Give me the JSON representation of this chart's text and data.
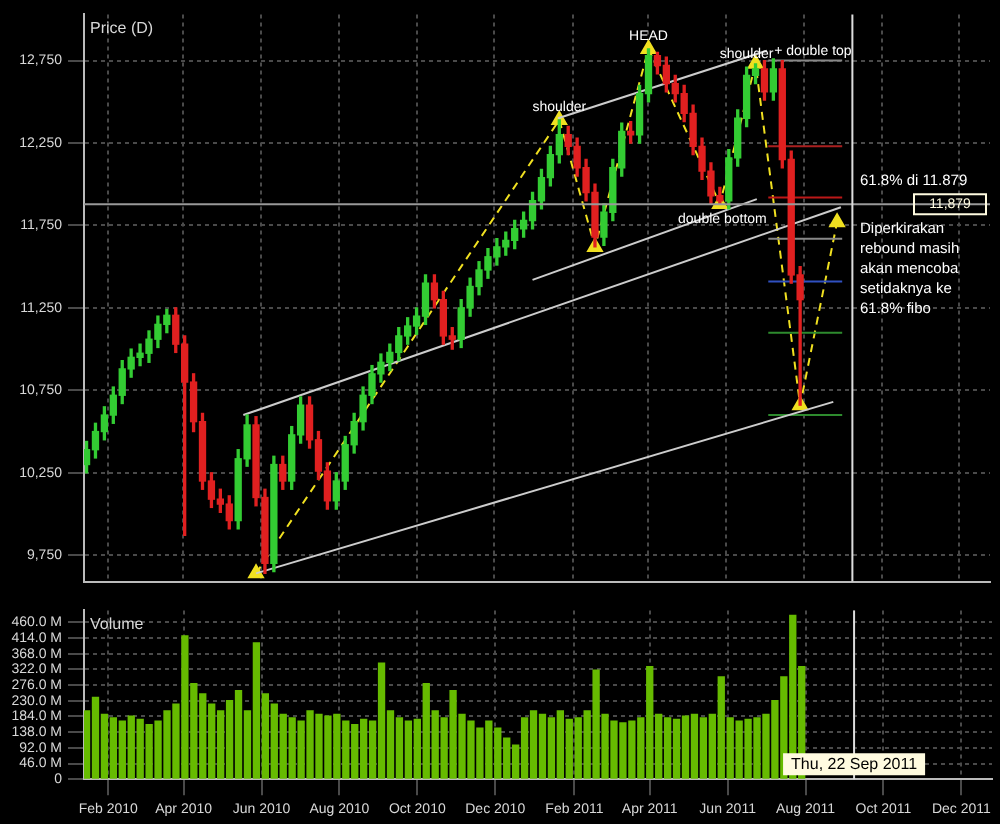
{
  "chart_data": [
    {
      "type": "candlestick",
      "title": "Price (D)",
      "x": [
        "2010-01-29",
        "2010-02-05",
        "2010-02-12",
        "2010-02-19",
        "2010-02-26",
        "2010-03-05",
        "2010-03-12",
        "2010-03-19",
        "2010-03-26",
        "2010-04-02",
        "2010-04-09",
        "2010-04-16",
        "2010-04-23",
        "2010-04-30",
        "2010-05-07",
        "2010-05-14",
        "2010-05-21",
        "2010-05-28",
        "2010-06-04",
        "2010-06-11",
        "2010-06-18",
        "2010-06-25",
        "2010-07-02",
        "2010-07-09",
        "2010-07-16",
        "2010-07-23",
        "2010-07-30",
        "2010-08-06",
        "2010-08-13",
        "2010-08-20",
        "2010-08-27",
        "2010-09-03",
        "2010-09-10",
        "2010-09-17",
        "2010-09-24",
        "2010-10-01",
        "2010-10-08",
        "2010-10-15",
        "2010-10-22",
        "2010-10-29",
        "2010-11-05",
        "2010-11-12",
        "2010-11-19",
        "2010-11-26",
        "2010-12-03",
        "2010-12-10",
        "2010-12-17",
        "2010-12-24",
        "2010-12-31",
        "2011-01-07",
        "2011-01-14",
        "2011-01-21",
        "2011-01-28",
        "2011-02-04",
        "2011-02-11",
        "2011-02-18",
        "2011-02-25",
        "2011-03-04",
        "2011-03-11",
        "2011-03-18",
        "2011-03-25",
        "2011-04-01",
        "2011-04-08",
        "2011-04-15",
        "2011-04-22",
        "2011-04-29",
        "2011-05-06",
        "2011-05-13",
        "2011-05-20",
        "2011-05-27",
        "2011-06-03",
        "2011-06-10",
        "2011-06-17",
        "2011-06-24",
        "2011-07-01",
        "2011-07-08",
        "2011-07-15",
        "2011-07-22",
        "2011-07-29",
        "2011-08-05",
        "2011-08-12"
      ],
      "ohlc": [
        [
          10300,
          10440,
          10250,
          10390
        ],
        [
          10390,
          10550,
          10340,
          10500
        ],
        [
          10500,
          10650,
          10450,
          10600
        ],
        [
          10600,
          10770,
          10550,
          10720
        ],
        [
          10720,
          10930,
          10670,
          10880
        ],
        [
          10880,
          11000,
          10830,
          10950
        ],
        [
          10950,
          11030,
          10900,
          10975
        ],
        [
          10975,
          11110,
          10920,
          11060
        ],
        [
          11060,
          11200,
          11010,
          11150
        ],
        [
          11150,
          11240,
          11100,
          11205
        ],
        [
          11205,
          11250,
          10980,
          11030
        ],
        [
          11030,
          11080,
          9870,
          10800
        ],
        [
          10800,
          10850,
          10500,
          10560
        ],
        [
          10560,
          10610,
          10150,
          10200
        ],
        [
          10200,
          10250,
          10040,
          10090
        ],
        [
          10090,
          10150,
          10010,
          10060
        ],
        [
          10060,
          10110,
          9910,
          9960
        ],
        [
          9960,
          10390,
          9910,
          10335
        ],
        [
          10335,
          10600,
          10290,
          10540
        ],
        [
          10540,
          10590,
          10050,
          10100
        ],
        [
          10100,
          10150,
          9640,
          9700
        ],
        [
          9700,
          10350,
          9650,
          10300
        ],
        [
          10300,
          10350,
          10150,
          10200
        ],
        [
          10200,
          10530,
          10150,
          10480
        ],
        [
          10480,
          10710,
          10430,
          10660
        ],
        [
          10660,
          10710,
          10400,
          10450
        ],
        [
          10450,
          10500,
          10210,
          10260
        ],
        [
          10260,
          10310,
          10030,
          10080
        ],
        [
          10080,
          10250,
          10030,
          10200
        ],
        [
          10200,
          10470,
          10150,
          10420
        ],
        [
          10420,
          10610,
          10370,
          10560
        ],
        [
          10560,
          10770,
          10510,
          10720
        ],
        [
          10720,
          10900,
          10670,
          10850
        ],
        [
          10850,
          10970,
          10800,
          10920
        ],
        [
          10920,
          11030,
          10870,
          10980
        ],
        [
          10980,
          11130,
          10930,
          11080
        ],
        [
          11080,
          11190,
          11030,
          11140
        ],
        [
          11140,
          11250,
          11090,
          11200
        ],
        [
          11200,
          11450,
          11150,
          11400
        ],
        [
          11400,
          11450,
          11250,
          11300
        ],
        [
          11300,
          11350,
          11030,
          11080
        ],
        [
          11080,
          11130,
          11000,
          11060
        ],
        [
          11060,
          11300,
          11010,
          11250
        ],
        [
          11250,
          11430,
          11200,
          11380
        ],
        [
          11380,
          11530,
          11330,
          11480
        ],
        [
          11480,
          11610,
          11430,
          11560
        ],
        [
          11560,
          11670,
          11510,
          11620
        ],
        [
          11620,
          11710,
          11570,
          11660
        ],
        [
          11660,
          11780,
          11610,
          11730
        ],
        [
          11730,
          11830,
          11680,
          11780
        ],
        [
          11780,
          11950,
          11730,
          11900
        ],
        [
          11900,
          12090,
          11850,
          12040
        ],
        [
          12040,
          12230,
          11990,
          12180
        ],
        [
          12180,
          12390,
          12130,
          12300
        ],
        [
          12300,
          12350,
          12180,
          12230
        ],
        [
          12230,
          12280,
          12050,
          12100
        ],
        [
          12100,
          12150,
          11900,
          11950
        ],
        [
          11950,
          12000,
          11620,
          11680
        ],
        [
          11680,
          11880,
          11630,
          11830
        ],
        [
          11830,
          12150,
          11780,
          12100
        ],
        [
          12100,
          12370,
          12050,
          12320
        ],
        [
          12320,
          12380,
          12250,
          12300
        ],
        [
          12300,
          12600,
          12250,
          12550
        ],
        [
          12550,
          12820,
          12500,
          12780
        ],
        [
          12780,
          12800,
          12670,
          12720
        ],
        [
          12720,
          12770,
          12560,
          12610
        ],
        [
          12610,
          12660,
          12500,
          12550
        ],
        [
          12550,
          12600,
          12380,
          12430
        ],
        [
          12430,
          12480,
          12180,
          12230
        ],
        [
          12230,
          12280,
          12030,
          12080
        ],
        [
          12080,
          12130,
          11880,
          11930
        ],
        [
          11930,
          11980,
          11880,
          11900
        ],
        [
          11900,
          12210,
          11850,
          12160
        ],
        [
          12160,
          12450,
          12110,
          12400
        ],
        [
          12400,
          12710,
          12350,
          12660
        ],
        [
          12660,
          12730,
          12610,
          12700
        ],
        [
          12700,
          12750,
          12510,
          12560
        ],
        [
          12560,
          12760,
          12510,
          12700
        ],
        [
          12700,
          12750,
          12100,
          12150
        ],
        [
          12150,
          12200,
          11400,
          11450
        ],
        [
          11450,
          11500,
          10660,
          11300
        ]
      ],
      "colors": [
        "#33cc33",
        "#33cc33",
        "#33cc33",
        "#33cc33",
        "#33cc33",
        "#33cc33",
        "#33cc33",
        "#33cc33",
        "#33cc33",
        "#33cc33",
        "#e02020",
        "#e02020",
        "#e02020",
        "#e02020",
        "#e02020",
        "#e02020",
        "#e02020",
        "#33cc33",
        "#33cc33",
        "#e02020",
        "#e02020",
        "#33cc33",
        "#e02020",
        "#33cc33",
        "#33cc33",
        "#e02020",
        "#e02020",
        "#e02020",
        "#33cc33",
        "#33cc33",
        "#33cc33",
        "#33cc33",
        "#33cc33",
        "#33cc33",
        "#33cc33",
        "#33cc33",
        "#33cc33",
        "#33cc33",
        "#33cc33",
        "#e02020",
        "#e02020",
        "#e02020",
        "#33cc33",
        "#33cc33",
        "#33cc33",
        "#33cc33",
        "#33cc33",
        "#33cc33",
        "#33cc33",
        "#33cc33",
        "#33cc33",
        "#33cc33",
        "#33cc33",
        "#33cc33",
        "#e02020",
        "#e02020",
        "#e02020",
        "#e02020",
        "#33cc33",
        "#33cc33",
        "#33cc33",
        "#e02020",
        "#33cc33",
        "#33cc33",
        "#e02020",
        "#e02020",
        "#e02020",
        "#e02020",
        "#e02020",
        "#e02020",
        "#e02020",
        "#e02020",
        "#33cc33",
        "#33cc33",
        "#33cc33",
        "#33cc33",
        "#e02020",
        "#33cc33",
        "#e02020",
        "#e02020",
        "#e02020"
      ],
      "series": [
        {
          "type": "line",
          "color": "#cccccc",
          "x": [
            "2010-06-11",
            "2011-09-07"
          ],
          "values": [
            9640,
            10680
          ]
        },
        {
          "type": "line",
          "color": "#cccccc",
          "x": [
            "2010-06-01",
            "2011-09-13"
          ],
          "values": [
            10600,
            11860
          ]
        },
        {
          "type": "line",
          "color": "#cccccc",
          "x": [
            "2011-01-14",
            "2011-07-09"
          ],
          "values": [
            11420,
            11910
          ]
        },
        {
          "type": "line",
          "color": "#cccccc",
          "x": [
            "2011-02-03",
            "2011-07-17"
          ],
          "values": [
            12400,
            12810
          ]
        },
        {
          "type": "line",
          "color": "#888888",
          "x": [
            "2011-07-18",
            "2011-09-14"
          ],
          "values": [
            12750,
            12750
          ]
        },
        {
          "type": "line",
          "color": "#aa2020",
          "x": [
            "2011-07-18",
            "2011-09-14"
          ],
          "values": [
            12230,
            12230
          ]
        },
        {
          "type": "line",
          "color": "#bb1818",
          "x": [
            "2011-07-18",
            "2011-09-14"
          ],
          "values": [
            11920,
            11920
          ]
        },
        {
          "type": "line",
          "color": "#888888",
          "x": [
            "2011-07-18",
            "2011-09-14"
          ],
          "values": [
            11670,
            11670
          ]
        },
        {
          "type": "line",
          "color": "#3050c0",
          "x": [
            "2011-07-18",
            "2011-09-14"
          ],
          "values": [
            11410,
            11410
          ]
        },
        {
          "type": "line",
          "color": "#2e8b2e",
          "x": [
            "2011-07-18",
            "2011-09-14"
          ],
          "values": [
            11100,
            11100
          ]
        },
        {
          "type": "line",
          "color": "#2e8b2e",
          "x": [
            "2011-07-18",
            "2011-09-14"
          ],
          "values": [
            10600,
            10600
          ]
        },
        {
          "type": "line",
          "color": "#f0e020",
          "line_style": "dashed",
          "marker": "triangle",
          "x": [
            "2010-06-11",
            "2011-02-04",
            "2011-03-04",
            "2011-04-15",
            "2011-06-10",
            "2011-07-08",
            "2011-08-12",
            "2011-09-10"
          ],
          "values": [
            9640,
            12390,
            11620,
            12820,
            11880,
            12730,
            10660,
            11770
          ]
        }
      ],
      "xlim": [
        "2010-01-27",
        "2012-01-08"
      ],
      "xticks": [
        {
          "value": "2010-02-15",
          "label": null
        },
        {
          "value": "2010-04-15",
          "label": null
        },
        {
          "value": "2010-06-15",
          "label": null
        },
        {
          "value": "2010-08-15",
          "label": null
        },
        {
          "value": "2010-10-15",
          "label": null
        },
        {
          "value": "2010-12-15",
          "label": null
        },
        {
          "value": "2011-02-15",
          "label": null
        },
        {
          "value": "2011-04-15",
          "label": null
        },
        {
          "value": "2011-06-15",
          "label": null
        },
        {
          "value": "2011-08-15",
          "label": null
        },
        {
          "value": "2011-10-15",
          "label": null
        },
        {
          "value": "2011-12-15",
          "label": null
        }
      ],
      "ylim": [
        9590,
        13030
      ],
      "yticks": [
        {
          "value": 9750,
          "label": "9,750"
        },
        {
          "value": 10250,
          "label": "10,250"
        },
        {
          "value": 10750,
          "label": "10,750"
        },
        {
          "value": 11250,
          "label": "11,250"
        },
        {
          "value": 11750,
          "label": "11,750"
        },
        {
          "value": 12250,
          "label": "12,250"
        },
        {
          "value": 12750,
          "label": "12,750"
        }
      ],
      "tick_labels": "y",
      "grid": true,
      "ref_lines": [
        {
          "axis": "y",
          "value": 11879,
          "label": "11,879",
          "color": "#999999"
        },
        {
          "axis": "x",
          "value": "2011-09-22",
          "color": "#dddddd"
        }
      ],
      "annotations": [
        {
          "text": "shoulder",
          "x": "2011-02-04",
          "y": 12470
        },
        {
          "text": "HEAD",
          "x": "2011-04-15",
          "y": 12900
        },
        {
          "text": "shoulder",
          "x": "2011-07-01",
          "y": 12790
        },
        {
          "text": "+ double top",
          "x": "2011-08-22",
          "y": 12810
        },
        {
          "text": "double bottom",
          "x": "2011-06-12",
          "y": 11790
        },
        "61.8% di 11.879",
        "Diperkirakan rebound masih akan mencoba setidaknya ke 61.8% fibo"
      ]
    },
    {
      "type": "bar",
      "title": "Volume",
      "x": [
        "2010-01-29",
        "2010-02-05",
        "2010-02-12",
        "2010-02-19",
        "2010-02-26",
        "2010-03-05",
        "2010-03-12",
        "2010-03-19",
        "2010-03-26",
        "2010-04-02",
        "2010-04-09",
        "2010-04-16",
        "2010-04-23",
        "2010-04-30",
        "2010-05-07",
        "2010-05-14",
        "2010-05-21",
        "2010-05-28",
        "2010-06-04",
        "2010-06-11",
        "2010-06-18",
        "2010-06-25",
        "2010-07-02",
        "2010-07-09",
        "2010-07-16",
        "2010-07-23",
        "2010-07-30",
        "2010-08-06",
        "2010-08-13",
        "2010-08-20",
        "2010-08-27",
        "2010-09-03",
        "2010-09-10",
        "2010-09-17",
        "2010-09-24",
        "2010-10-01",
        "2010-10-08",
        "2010-10-15",
        "2010-10-22",
        "2010-10-29",
        "2010-11-05",
        "2010-11-12",
        "2010-11-19",
        "2010-11-26",
        "2010-12-03",
        "2010-12-10",
        "2010-12-17",
        "2010-12-24",
        "2010-12-31",
        "2011-01-07",
        "2011-01-14",
        "2011-01-21",
        "2011-01-28",
        "2011-02-04",
        "2011-02-11",
        "2011-02-18",
        "2011-02-25",
        "2011-03-04",
        "2011-03-11",
        "2011-03-18",
        "2011-03-25",
        "2011-04-01",
        "2011-04-08",
        "2011-04-15",
        "2011-04-22",
        "2011-04-29",
        "2011-05-06",
        "2011-05-13",
        "2011-05-20",
        "2011-05-27",
        "2011-06-03",
        "2011-06-10",
        "2011-06-17",
        "2011-06-24",
        "2011-07-01",
        "2011-07-08",
        "2011-07-15",
        "2011-07-22",
        "2011-07-29",
        "2011-08-05",
        "2011-08-12"
      ],
      "values": [
        200,
        240,
        190,
        180,
        170,
        185,
        175,
        160,
        170,
        200,
        220,
        420,
        280,
        250,
        220,
        200,
        230,
        260,
        200,
        400,
        250,
        220,
        190,
        180,
        170,
        200,
        190,
        185,
        190,
        170,
        160,
        175,
        170,
        340,
        200,
        180,
        170,
        175,
        280,
        200,
        180,
        260,
        190,
        170,
        150,
        170,
        150,
        120,
        100,
        180,
        200,
        190,
        180,
        200,
        175,
        180,
        200,
        320,
        190,
        170,
        165,
        170,
        180,
        330,
        190,
        180,
        175,
        185,
        190,
        180,
        190,
        300,
        180,
        170,
        175,
        180,
        190,
        230,
        300,
        480,
        330
      ],
      "color": "#66bb00",
      "xlim": [
        "2010-01-27",
        "2012-01-08"
      ],
      "xticks": [
        {
          "value": "2010-02-15",
          "label": "Feb 2010"
        },
        {
          "value": "2010-04-15",
          "label": "Apr 2010"
        },
        {
          "value": "2010-06-15",
          "label": "Jun 2010"
        },
        {
          "value": "2010-08-15",
          "label": "Aug 2010"
        },
        {
          "value": "2010-10-15",
          "label": "Oct 2010"
        },
        {
          "value": "2010-12-15",
          "label": "Dec 2010"
        },
        {
          "value": "2011-02-15",
          "label": "Feb 2011"
        },
        {
          "value": "2011-04-15",
          "label": "Apr 2011"
        },
        {
          "value": "2011-06-15",
          "label": "Jun 2011"
        },
        {
          "value": "2011-08-15",
          "label": "Aug 2011"
        },
        {
          "value": "2011-10-15",
          "label": "Oct 2011"
        },
        {
          "value": "2011-12-15",
          "label": "Dec 2011"
        }
      ],
      "ylim": [
        0,
        495
      ],
      "yticks": [
        {
          "value": 0,
          "label": "0"
        },
        {
          "value": 46,
          "label": "46.0 M"
        },
        {
          "value": 92,
          "label": "92.0 M"
        },
        {
          "value": 138,
          "label": "138.0 M"
        },
        {
          "value": 184,
          "label": "184.0 M"
        },
        {
          "value": 230,
          "label": "230.0 M"
        },
        {
          "value": 276,
          "label": "276.0 M"
        },
        {
          "value": 322,
          "label": "322.0 M"
        },
        {
          "value": 368,
          "label": "368.0 M"
        },
        {
          "value": 414,
          "label": "414.0 M"
        },
        {
          "value": 460,
          "label": "460.0 M"
        }
      ],
      "grid": true,
      "ref_lines": [
        {
          "axis": "x",
          "value": "2011-09-22",
          "label": "Thu, 22 Sep 2011",
          "color": "#dddddd"
        }
      ]
    }
  ]
}
